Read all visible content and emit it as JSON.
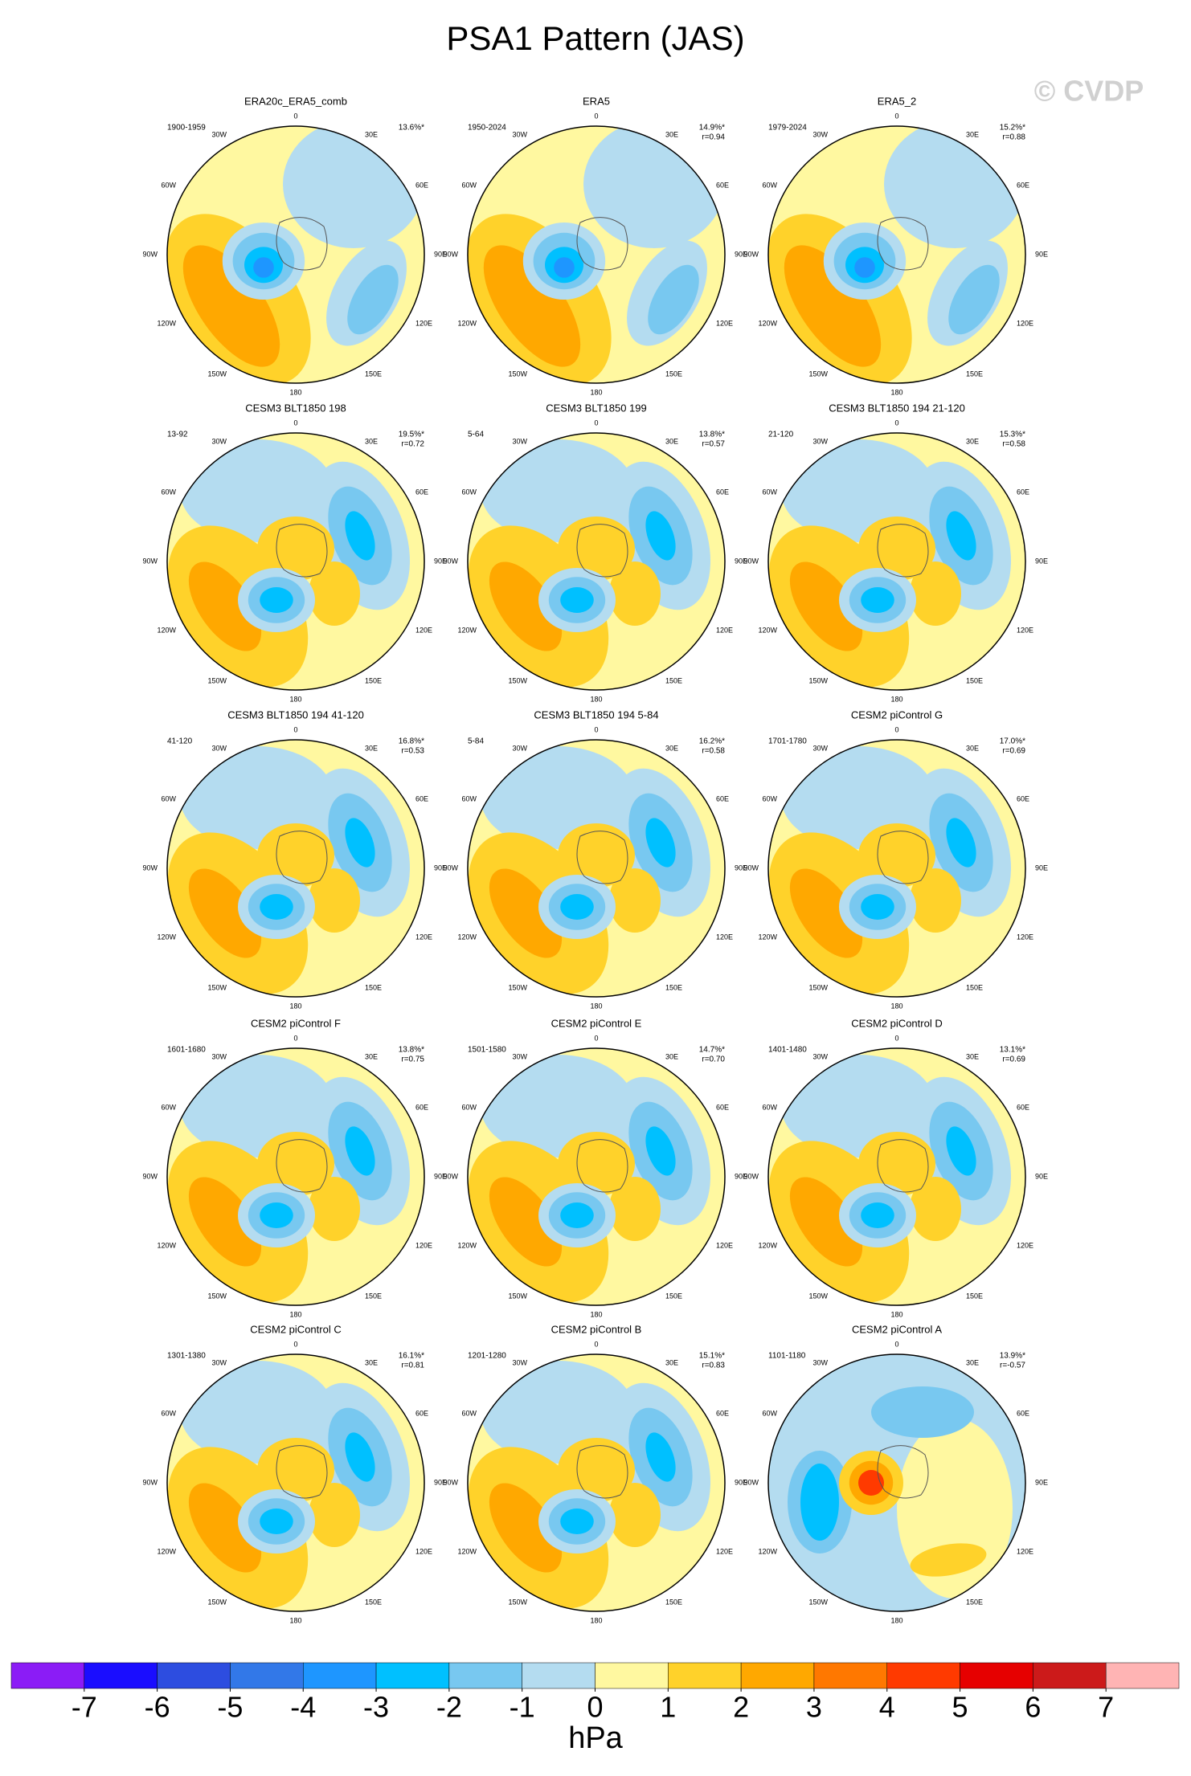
{
  "header": {
    "title": "PSA1 Pattern (JAS)",
    "watermark": "© CVDP"
  },
  "lon_labels": [
    "0",
    "30E",
    "60E",
    "90E",
    "120E",
    "150E",
    "180",
    "150W",
    "120W",
    "90W",
    "60W",
    "30W"
  ],
  "panels": [
    {
      "title": "ERA20c_ERA5_comb",
      "period": "1900-1959",
      "pct": "13.6%*"
    },
    {
      "title": "ERA5",
      "period": "1950-2024",
      "pct": "14.9%*",
      "r": "r=0.94"
    },
    {
      "title": "ERA5_2",
      "period": "1979-2024",
      "pct": "15.2%*",
      "r": "r=0.88"
    },
    {
      "title": "CESM3 BLT1850 198",
      "period": "13-92",
      "pct": "19.5%*",
      "r": "r=0.72"
    },
    {
      "title": "CESM3 BLT1850 199",
      "period": "5-64",
      "pct": "13.8%*",
      "r": "r=0.57"
    },
    {
      "title": "CESM3 BLT1850 194 21-120",
      "period": "21-120",
      "pct": "15.3%*",
      "r": "r=0.58"
    },
    {
      "title": "CESM3 BLT1850 194 41-120",
      "period": "41-120",
      "pct": "16.8%*",
      "r": "r=0.53"
    },
    {
      "title": "CESM3 BLT1850 194 5-84",
      "period": "5-84",
      "pct": "16.2%*",
      "r": "r=0.58"
    },
    {
      "title": "CESM2 piControl G",
      "period": "1701-1780",
      "pct": "17.0%*",
      "r": "r=0.69"
    },
    {
      "title": "CESM2 piControl F",
      "period": "1601-1680",
      "pct": "13.8%*",
      "r": "r=0.75"
    },
    {
      "title": "CESM2 piControl E",
      "period": "1501-1580",
      "pct": "14.7%*",
      "r": "r=0.70"
    },
    {
      "title": "CESM2 piControl D",
      "period": "1401-1480",
      "pct": "13.1%*",
      "r": "r=0.69"
    },
    {
      "title": "CESM2 piControl C",
      "period": "1301-1380",
      "pct": "16.1%*",
      "r": "r=0.81"
    },
    {
      "title": "CESM2 piControl B",
      "period": "1201-1280",
      "pct": "15.1%*",
      "r": "r=0.83"
    },
    {
      "title": "CESM2 piControl A",
      "period": "1101-1180",
      "pct": "13.9%*",
      "r": "r=-0.57"
    }
  ],
  "colorbar": {
    "unit": "hPa",
    "ticks": [
      -7,
      -6,
      -5,
      -4,
      -3,
      -2,
      -1,
      0,
      1,
      2,
      3,
      4,
      5,
      6,
      7
    ],
    "colors": [
      "#8b1cf6",
      "#1a0dff",
      "#2d4de0",
      "#3278e8",
      "#1e96ff",
      "#00c0ff",
      "#78c8f0",
      "#b4dcf0",
      "#fff8a0",
      "#ffd22a",
      "#ffa800",
      "#ff7800",
      "#ff3a00",
      "#e60000",
      "#cc1a1a",
      "#ffb4b4"
    ]
  }
}
